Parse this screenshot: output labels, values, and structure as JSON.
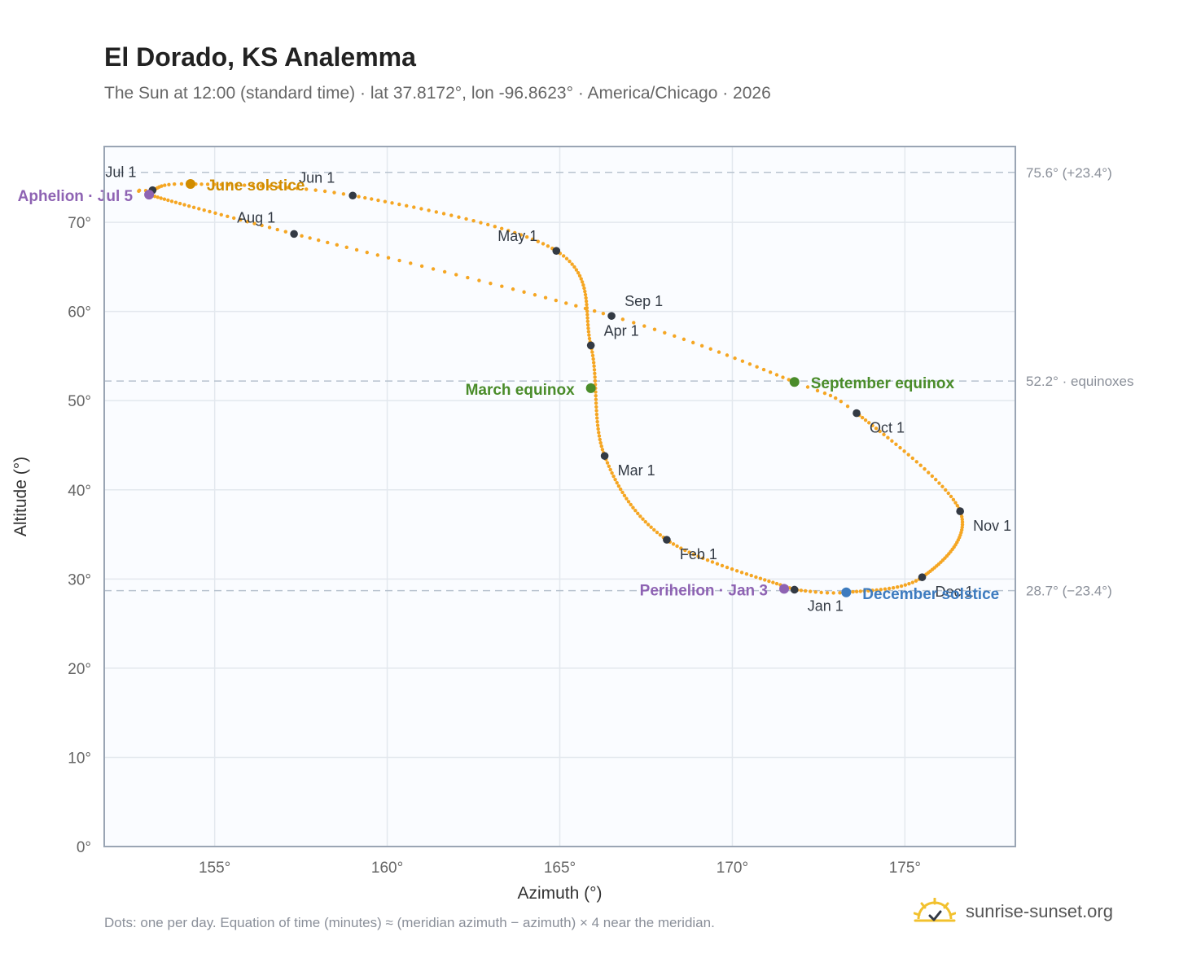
{
  "title": "El Dorado, KS Analemma",
  "subtitle": "The Sun at 12:00 (standard time) · lat 37.8172°, lon -96.8623° · America/Chicago · 2026",
  "footnote": "Dots: one per day. Equation of time (minutes) ≈ (meridian azimuth − azimuth) × 4 near the meridian.",
  "brand": "sunrise-sunset.org",
  "brand_icon": "sun-checkmark-logo",
  "chart_data": {
    "type": "scatter",
    "xlabel": "Azimuth (°)",
    "ylabel": "Altitude (°)",
    "xlim": [
      151.8,
      178.2
    ],
    "ylim": [
      0,
      78.5
    ],
    "xticks": [
      155,
      160,
      165,
      170,
      175
    ],
    "xtick_labels": [
      "155°",
      "160°",
      "165°",
      "170°",
      "175°"
    ],
    "yticks": [
      0,
      10,
      20,
      30,
      40,
      50,
      60,
      70
    ],
    "ytick_labels": [
      "0°",
      "10°",
      "20°",
      "30°",
      "40°",
      "50°",
      "60°",
      "70°"
    ],
    "grid": true,
    "colors": {
      "curve": "#f5a623",
      "month_marker": "#333a44",
      "equinox": "#4a8c2a",
      "june_solstice": "#d08c00",
      "december_solstice": "#3d7bbf",
      "apsis": "#8e63b3",
      "reference_line": "#b8c3cf",
      "plot_bg": "#fafcff",
      "grid": "#e3e8ee",
      "frame": "#9aa5b4"
    },
    "reference_lines": [
      {
        "y": 75.6,
        "label": "75.6° (+23.4°)"
      },
      {
        "y": 52.2,
        "label": "52.2° · equinoxes"
      },
      {
        "y": 28.7,
        "label": "28.7° (−23.4°)"
      }
    ],
    "path_days": [
      1,
      32,
      60,
      91,
      121,
      152,
      172,
      182,
      186,
      213,
      244,
      266,
      274,
      305,
      335,
      355,
      365
    ],
    "path_points": [
      [
        171.8,
        28.8
      ],
      [
        168.1,
        34.4
      ],
      [
        166.3,
        43.8
      ],
      [
        165.9,
        56.2
      ],
      [
        164.9,
        66.8
      ],
      [
        159.0,
        73.0
      ],
      [
        154.3,
        74.3
      ],
      [
        153.2,
        73.6
      ],
      [
        153.1,
        73.1
      ],
      [
        157.3,
        68.7
      ],
      [
        166.5,
        59.5
      ],
      [
        171.8,
        52.1
      ],
      [
        173.6,
        48.6
      ],
      [
        176.6,
        37.6
      ],
      [
        175.5,
        30.2
      ],
      [
        173.3,
        28.5
      ],
      [
        171.8,
        28.8
      ]
    ],
    "month_markers": [
      {
        "label": "Jan 1",
        "az": 171.8,
        "alt": 28.8
      },
      {
        "label": "Feb 1",
        "az": 168.1,
        "alt": 34.4
      },
      {
        "label": "Mar 1",
        "az": 166.3,
        "alt": 43.8
      },
      {
        "label": "Apr 1",
        "az": 165.9,
        "alt": 56.2
      },
      {
        "label": "May 1",
        "az": 164.9,
        "alt": 66.8
      },
      {
        "label": "Jun 1",
        "az": 159.0,
        "alt": 73.0
      },
      {
        "label": "Jul 1",
        "az": 153.2,
        "alt": 73.6
      },
      {
        "label": "Aug 1",
        "az": 157.3,
        "alt": 68.7
      },
      {
        "label": "Sep 1",
        "az": 166.5,
        "alt": 59.5
      },
      {
        "label": "Oct 1",
        "az": 173.6,
        "alt": 48.6
      },
      {
        "label": "Nov 1",
        "az": 176.6,
        "alt": 37.6
      },
      {
        "label": "Dec 1",
        "az": 175.5,
        "alt": 30.2
      }
    ],
    "events": [
      {
        "label": "March equinox",
        "az": 165.9,
        "alt": 51.4,
        "kind": "equinox"
      },
      {
        "label": "September equinox",
        "az": 171.8,
        "alt": 52.1,
        "kind": "equinox"
      },
      {
        "label": "June solstice",
        "az": 154.3,
        "alt": 74.3,
        "kind": "june_solstice"
      },
      {
        "label": "December solstice",
        "az": 173.3,
        "alt": 28.5,
        "kind": "december_solstice"
      },
      {
        "label": "Aphelion · Jul 5",
        "az": 153.1,
        "alt": 73.1,
        "kind": "apsis"
      },
      {
        "label": "Perihelion · Jan 3",
        "az": 171.5,
        "alt": 28.9,
        "kind": "apsis"
      }
    ]
  }
}
